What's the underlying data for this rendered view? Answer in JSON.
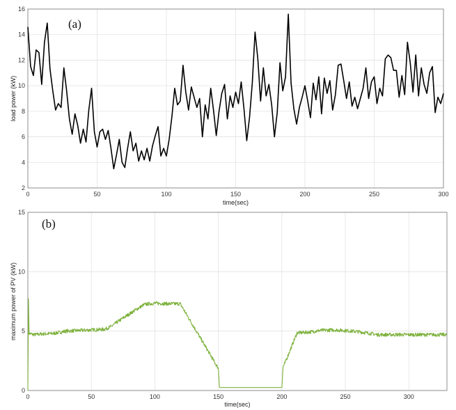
{
  "chart_data": [
    {
      "type": "line",
      "panel_label": "(a)",
      "xlabel": "time(sec)",
      "ylabel": "load power (kW)",
      "xlim": [
        0,
        300
      ],
      "ylim": [
        2,
        16
      ],
      "x_ticks": [
        0,
        50,
        100,
        150,
        200,
        250,
        300
      ],
      "y_ticks": [
        2,
        4,
        6,
        8,
        10,
        12,
        14,
        16
      ],
      "grid": true,
      "color": "#000000",
      "series": [
        {
          "x": [
            0,
            2,
            4,
            6,
            8,
            10,
            12,
            14,
            16,
            18,
            20,
            22,
            24,
            26,
            28,
            30,
            32,
            34,
            36,
            38,
            40,
            42,
            44,
            46,
            48,
            50,
            52,
            54,
            56,
            58,
            60,
            62,
            64,
            66,
            68,
            70,
            72,
            74,
            76,
            78,
            80,
            82,
            84,
            86,
            88,
            90,
            92,
            94,
            96,
            98,
            100,
            102,
            104,
            106,
            108,
            110,
            112,
            114,
            116,
            118,
            120,
            122,
            124,
            126,
            128,
            130,
            132,
            134,
            136,
            138,
            140,
            142,
            144,
            146,
            148,
            150,
            152,
            154,
            156,
            158,
            160,
            162,
            164,
            166,
            168,
            170,
            172,
            174,
            176,
            178,
            180,
            182,
            184,
            186,
            188,
            190,
            192,
            194,
            196,
            198,
            200,
            202,
            204,
            206,
            208,
            210,
            212,
            214,
            216,
            218,
            220,
            222,
            224,
            226,
            228,
            230,
            232,
            234,
            236,
            238,
            240,
            242,
            244,
            246,
            248,
            250,
            252,
            254,
            256,
            258,
            260,
            262,
            264,
            266,
            268,
            270,
            272,
            274,
            276,
            278,
            280,
            282,
            284,
            286,
            288,
            290,
            292,
            294,
            296,
            298,
            300
          ],
          "y": [
            14.6,
            11.5,
            10.8,
            12.8,
            12.6,
            10.1,
            13.4,
            14.9,
            11.3,
            9.6,
            8.1,
            8.6,
            8.3,
            11.4,
            9.6,
            7.4,
            6.2,
            7.8,
            6.9,
            5.5,
            6.6,
            5.6,
            8.1,
            9.8,
            6.4,
            5.2,
            6.4,
            6.6,
            5.8,
            6.5,
            5.1,
            3.5,
            4.6,
            5.8,
            4.0,
            3.6,
            5.1,
            6.4,
            4.9,
            5.5,
            4.1,
            4.9,
            4.2,
            5.1,
            4.1,
            5.3,
            6.1,
            6.8,
            4.5,
            5.1,
            4.5,
            5.8,
            7.6,
            9.8,
            8.5,
            8.8,
            11.6,
            9.5,
            8.1,
            9.9,
            9.1,
            8.3,
            9.0,
            6.0,
            8.5,
            7.4,
            9.8,
            8.1,
            6.1,
            8.0,
            9.4,
            10.1,
            7.4,
            9.2,
            8.3,
            9.5,
            8.6,
            10.3,
            8.2,
            5.7,
            7.5,
            10.2,
            14.2,
            12.1,
            8.8,
            11.4,
            9.2,
            10.1,
            8.5,
            6.0,
            7.9,
            11.8,
            9.6,
            10.7,
            15.6,
            10.2,
            8.2,
            7.0,
            8.3,
            9.1,
            10.0,
            8.8,
            7.5,
            10.2,
            8.9,
            10.7,
            7.8,
            10.6,
            9.4,
            10.4,
            8.1,
            9.3,
            11.6,
            11.7,
            10.4,
            9.0,
            10.3,
            8.4,
            9.1,
            8.2,
            9.0,
            9.8,
            11.4,
            9.0,
            10.3,
            10.7,
            8.6,
            9.8,
            9.2,
            12.1,
            12.4,
            12.2,
            11.2,
            11.2,
            9.1,
            10.8,
            9.3,
            13.4,
            11.8,
            9.5,
            12.4,
            9.2,
            11.4,
            10.1,
            9.4,
            11.0,
            11.5,
            7.9,
            9.1,
            8.6,
            9.4
          ]
        }
      ]
    },
    {
      "type": "line",
      "panel_label": "(b)",
      "xlabel": "time(sec)",
      "ylabel": "maximum power of PV (kW)",
      "xlim": [
        0,
        330
      ],
      "ylim": [
        0,
        15
      ],
      "x_ticks": [
        0,
        50,
        100,
        150,
        200,
        250,
        300
      ],
      "y_ticks": [
        0,
        5,
        10,
        15
      ],
      "grid": true,
      "color": "#7db13c",
      "series": [
        {
          "x": [
            0,
            0.5,
            1,
            5,
            10,
            20,
            30,
            40,
            50,
            60,
            65,
            75,
            85,
            92,
            100,
            110,
            120,
            150,
            151,
            152,
            200,
            201,
            202,
            212,
            220,
            230,
            240,
            250,
            260,
            270,
            275,
            290,
            300,
            310,
            320,
            330
          ],
          "y": [
            0,
            7.6,
            4.8,
            4.7,
            4.75,
            4.8,
            5.0,
            5.05,
            5.1,
            5.15,
            5.35,
            6.1,
            6.8,
            7.25,
            7.35,
            7.3,
            7.3,
            1.85,
            0.25,
            0.25,
            0.25,
            2.0,
            2.2,
            4.85,
            4.9,
            5.05,
            5.1,
            5.05,
            4.95,
            4.8,
            4.7,
            4.7,
            4.7,
            4.7,
            4.7,
            4.7
          ],
          "noise_amplitude_kW": 0.15
        }
      ]
    }
  ]
}
